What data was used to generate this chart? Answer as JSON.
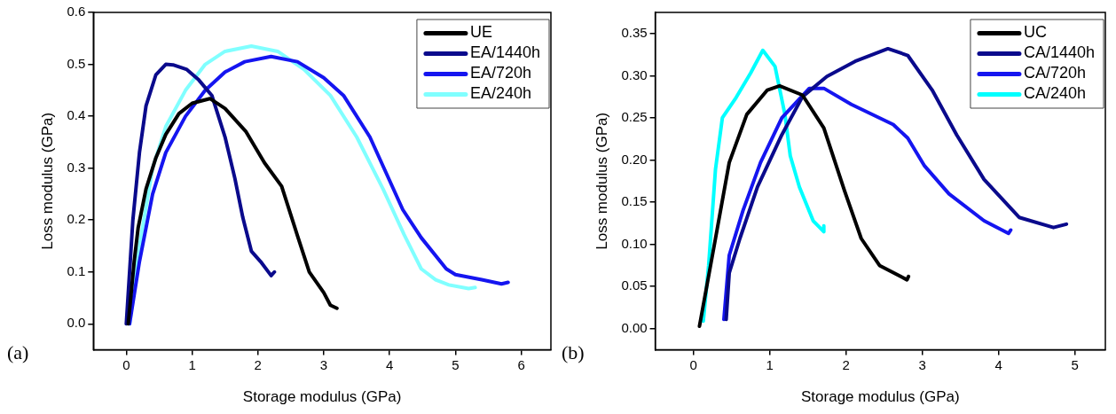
{
  "chart_data": [
    {
      "type": "line",
      "xlabel": "Storage modulus (GPa)",
      "ylabel": "Loss modulus (GPa)",
      "annotations": [
        "(a)"
      ],
      "xlim": [
        -0.5,
        6.45
      ],
      "xticks": [
        0,
        1,
        2,
        3,
        4,
        5,
        6
      ],
      "ylim": [
        -0.05,
        0.6
      ],
      "yticks": [
        {
          "value": 0,
          "label": "0.0"
        },
        {
          "value": 0.1,
          "label": "0.1"
        },
        {
          "value": 0.2,
          "label": "0.2"
        },
        {
          "value": 0.3,
          "label": "0.3"
        },
        {
          "value": 0.4,
          "label": "0.4"
        },
        {
          "value": 0.5,
          "label": "0.5"
        },
        {
          "value": 0.6,
          "label": "0.6"
        }
      ],
      "legend": "top right",
      "grid": false,
      "marker": "none",
      "line_style": "solid",
      "series": [
        {
          "name": "UE",
          "color": "#000000",
          "x": [
            0.03,
            0.12,
            0.18,
            0.3,
            0.45,
            0.6,
            0.8,
            1.0,
            1.27,
            1.5,
            1.82,
            2.1,
            2.36,
            2.6,
            2.78,
            3.0,
            3.1,
            3.2
          ],
          "values": [
            0.0,
            0.12,
            0.185,
            0.26,
            0.32,
            0.365,
            0.405,
            0.425,
            0.434,
            0.415,
            0.37,
            0.31,
            0.265,
            0.17,
            0.1,
            0.06,
            0.036,
            0.03
          ]
        },
        {
          "name": "EA/1440h",
          "color": "#0a0a8c",
          "x": [
            0.0,
            0.1,
            0.2,
            0.3,
            0.45,
            0.6,
            0.71,
            0.92,
            1.1,
            1.3,
            1.5,
            1.65,
            1.77,
            1.9,
            2.04,
            2.2,
            2.25
          ],
          "values": [
            0.0,
            0.2,
            0.33,
            0.42,
            0.48,
            0.5,
            0.499,
            0.49,
            0.47,
            0.44,
            0.36,
            0.28,
            0.205,
            0.14,
            0.12,
            0.093,
            0.1
          ]
        },
        {
          "name": "EA/720h",
          "color": "#1515f0",
          "x": [
            0.05,
            0.2,
            0.4,
            0.6,
            0.9,
            1.2,
            1.5,
            1.8,
            2.2,
            2.6,
            3.0,
            3.3,
            3.7,
            3.95,
            4.2,
            4.48,
            4.86,
            5.0,
            5.4,
            5.7,
            5.8
          ],
          "values": [
            0.0,
            0.12,
            0.25,
            0.33,
            0.4,
            0.45,
            0.485,
            0.505,
            0.515,
            0.505,
            0.474,
            0.44,
            0.36,
            0.29,
            0.22,
            0.166,
            0.106,
            0.095,
            0.085,
            0.077,
            0.08
          ]
        },
        {
          "name": "EA/240h",
          "color": "#80ffff",
          "x": [
            0.05,
            0.2,
            0.4,
            0.6,
            0.9,
            1.2,
            1.5,
            1.9,
            2.3,
            2.7,
            3.1,
            3.5,
            3.9,
            4.22,
            4.48,
            4.7,
            4.9,
            5.2,
            5.3
          ],
          "values": [
            0.0,
            0.15,
            0.3,
            0.38,
            0.45,
            0.5,
            0.525,
            0.535,
            0.525,
            0.49,
            0.44,
            0.36,
            0.26,
            0.172,
            0.106,
            0.085,
            0.075,
            0.068,
            0.07
          ]
        }
      ]
    },
    {
      "type": "line",
      "xlabel": "Storage modulus (GPa)",
      "ylabel": "Loss modulus (GPa)",
      "annotations": [
        "(b)"
      ],
      "xlim": [
        -0.5,
        5.4
      ],
      "xticks": [
        0,
        1,
        2,
        3,
        4,
        5
      ],
      "ylim": [
        -0.025,
        0.375
      ],
      "yticks": [
        {
          "value": 0,
          "label": "0.00"
        },
        {
          "value": 0.05,
          "label": "0.05"
        },
        {
          "value": 0.1,
          "label": "0.10"
        },
        {
          "value": 0.15,
          "label": "0.15"
        },
        {
          "value": 0.2,
          "label": "0.20"
        },
        {
          "value": 0.25,
          "label": "0.25"
        },
        {
          "value": 0.3,
          "label": "0.30"
        },
        {
          "value": 0.35,
          "label": "0.35"
        }
      ],
      "legend": "top right",
      "grid": false,
      "marker": "none",
      "line_style": "solid",
      "series": [
        {
          "name": "UC",
          "color": "#000000",
          "x": [
            0.08,
            0.29,
            0.47,
            0.7,
            0.97,
            1.13,
            1.43,
            1.71,
            1.98,
            2.2,
            2.44,
            2.8,
            2.82
          ],
          "values": [
            0.003,
            0.107,
            0.197,
            0.254,
            0.283,
            0.288,
            0.277,
            0.238,
            0.164,
            0.107,
            0.075,
            0.058,
            0.062
          ]
        },
        {
          "name": "CA/1440h",
          "color": "#0a0a8c",
          "x": [
            0.43,
            0.47,
            0.61,
            0.84,
            1.16,
            1.43,
            1.75,
            2.12,
            2.55,
            2.81,
            3.13,
            3.45,
            3.81,
            4.27,
            4.72,
            4.89
          ],
          "values": [
            0.011,
            0.066,
            0.107,
            0.168,
            0.23,
            0.275,
            0.299,
            0.317,
            0.332,
            0.324,
            0.283,
            0.23,
            0.177,
            0.132,
            0.12,
            0.124
          ]
        },
        {
          "name": "CA/720h",
          "color": "#1515f0",
          "x": [
            0.4,
            0.47,
            0.65,
            0.88,
            1.16,
            1.52,
            1.71,
            2.07,
            2.62,
            2.81,
            3.03,
            3.35,
            3.81,
            4.13,
            4.16
          ],
          "values": [
            0.011,
            0.087,
            0.14,
            0.197,
            0.25,
            0.285,
            0.285,
            0.266,
            0.242,
            0.226,
            0.193,
            0.16,
            0.128,
            0.113,
            0.117
          ]
        },
        {
          "name": "CA/240h",
          "color": "#00ffff",
          "x": [
            0.13,
            0.2,
            0.29,
            0.38,
            0.56,
            0.75,
            0.91,
            1.07,
            1.2,
            1.27,
            1.39,
            1.57,
            1.71,
            1.71
          ],
          "values": [
            0.009,
            0.075,
            0.189,
            0.25,
            0.274,
            0.303,
            0.33,
            0.311,
            0.254,
            0.205,
            0.168,
            0.128,
            0.115,
            0.122
          ]
        }
      ]
    }
  ]
}
